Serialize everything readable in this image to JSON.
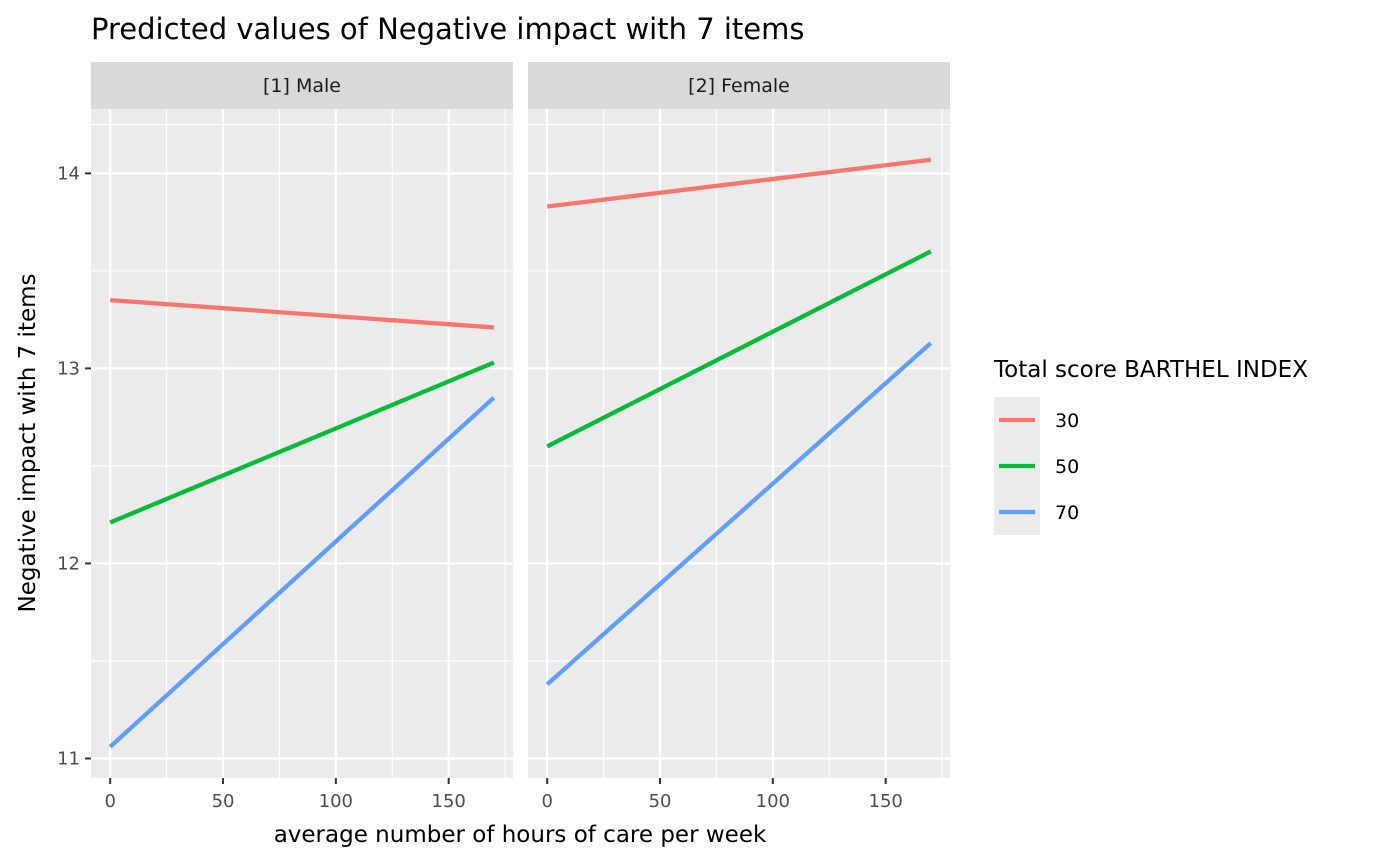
{
  "chart_data": {
    "type": "line",
    "title": "Predicted values of Negative impact with 7 items",
    "xlabel": "average number of hours of care per week",
    "ylabel": "Negative impact with 7 items",
    "xlim": [
      -8.5,
      178.5
    ],
    "ylim": [
      10.9,
      14.33
    ],
    "x_ticks": [
      0,
      50,
      100,
      150
    ],
    "y_ticks": [
      11,
      12,
      13,
      14
    ],
    "x_tick_labels": [
      "0",
      "50",
      "100",
      "150"
    ],
    "y_tick_labels": [
      "11",
      "12",
      "13",
      "14"
    ],
    "grid": true,
    "legend": {
      "title": "Total score BARTHEL INDEX",
      "placement": "right",
      "entries": [
        {
          "label": "30",
          "color": "#F8766D"
        },
        {
          "label": "50",
          "color": "#00BA38"
        },
        {
          "label": "70",
          "color": "#619CFF"
        }
      ]
    },
    "panels": [
      {
        "label": "[1] Male",
        "series": [
          {
            "name": "30",
            "color": "#F8766D",
            "x": [
              0,
              170
            ],
            "y": [
              13.35,
              13.21
            ]
          },
          {
            "name": "50",
            "color": "#00BA38",
            "x": [
              0,
              170
            ],
            "y": [
              12.21,
              13.03
            ]
          },
          {
            "name": "70",
            "color": "#619CFF",
            "x": [
              0,
              170
            ],
            "y": [
              11.06,
              12.85
            ]
          }
        ]
      },
      {
        "label": "[2] Female",
        "series": [
          {
            "name": "30",
            "color": "#F8766D",
            "x": [
              0,
              170
            ],
            "y": [
              13.83,
              14.07
            ]
          },
          {
            "name": "50",
            "color": "#00BA38",
            "x": [
              0,
              170
            ],
            "y": [
              12.6,
              13.6
            ]
          },
          {
            "name": "70",
            "color": "#619CFF",
            "x": [
              0,
              170
            ],
            "y": [
              11.38,
              13.13
            ]
          }
        ]
      }
    ]
  },
  "colors": {
    "panel_bg": "#EBEBEB",
    "strip_bg": "#D9D9D9",
    "grid": "#FFFFFF",
    "tick": "#333333"
  }
}
